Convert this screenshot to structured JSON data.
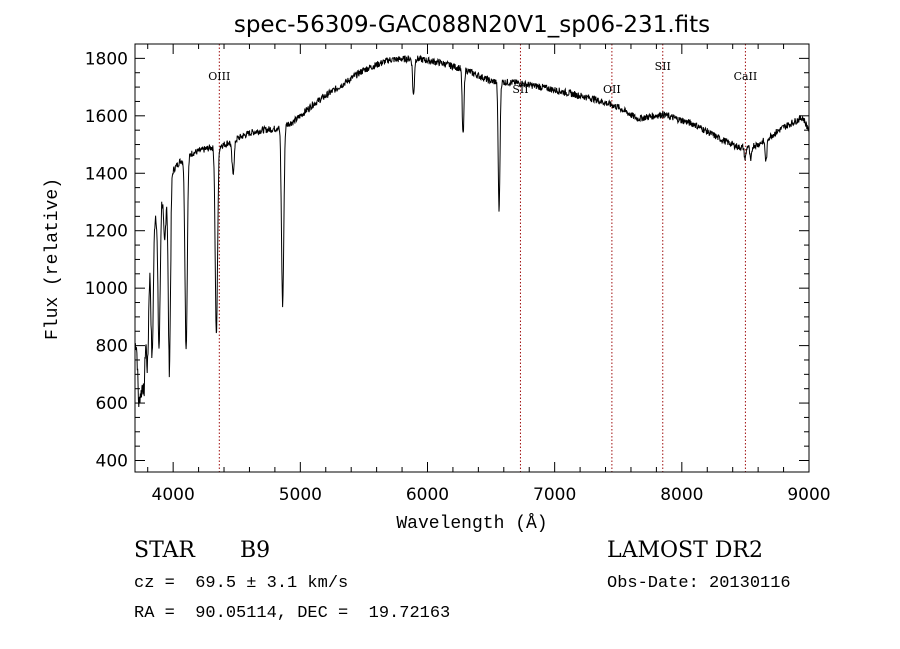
{
  "chart_data": {
    "type": "line",
    "title": "spec-56309-GAC088N20V1_sp06-231.fits",
    "xlabel": "Wavelength (Å)",
    "ylabel": "Flux (relative)",
    "xlim": [
      3700,
      9000
    ],
    "ylim": [
      360,
      1850
    ],
    "xticks": [
      4000,
      5000,
      6000,
      7000,
      8000,
      9000
    ],
    "yticks": [
      400,
      600,
      800,
      1000,
      1200,
      1400,
      1600,
      1800
    ],
    "grid": false,
    "series": [
      {
        "continuum": [
          [
            3700,
            800
          ],
          [
            3780,
            1000
          ],
          [
            3850,
            1250
          ],
          [
            3950,
            1380
          ],
          [
            4050,
            1440
          ],
          [
            4150,
            1470
          ],
          [
            4300,
            1490
          ],
          [
            4400,
            1500
          ],
          [
            4500,
            1520
          ],
          [
            4600,
            1540
          ],
          [
            4700,
            1550
          ],
          [
            4800,
            1555
          ],
          [
            4950,
            1580
          ],
          [
            5100,
            1640
          ],
          [
            5300,
            1700
          ],
          [
            5500,
            1760
          ],
          [
            5700,
            1795
          ],
          [
            5900,
            1800
          ],
          [
            6100,
            1785
          ],
          [
            6300,
            1760
          ],
          [
            6500,
            1720
          ],
          [
            6700,
            1715
          ],
          [
            6900,
            1700
          ],
          [
            7100,
            1680
          ],
          [
            7300,
            1660
          ],
          [
            7500,
            1630
          ],
          [
            7650,
            1590
          ],
          [
            7850,
            1605
          ],
          [
            8100,
            1570
          ],
          [
            8300,
            1520
          ],
          [
            8450,
            1490
          ],
          [
            8600,
            1500
          ],
          [
            8800,
            1560
          ],
          [
            8950,
            1595
          ],
          [
            9000,
            1550
          ]
        ],
        "absorption_lines": [
          [
            3730,
            620
          ],
          [
            3750,
            680
          ],
          [
            3771,
            660
          ],
          [
            3798,
            730
          ],
          [
            3835,
            760
          ],
          [
            3889,
            790
          ],
          [
            3933,
            1150
          ],
          [
            3970,
            720
          ],
          [
            4102,
            790
          ],
          [
            4340,
            830
          ],
          [
            4471,
            1400
          ],
          [
            4861,
            940
          ],
          [
            5890,
            1670
          ],
          [
            6280,
            1530
          ],
          [
            6563,
            1265
          ],
          [
            8498,
            1450
          ],
          [
            8542,
            1440
          ],
          [
            8662,
            1440
          ]
        ],
        "noise_amplitude": 12
      }
    ],
    "line_markers": [
      {
        "label": "OIII",
        "wavelength": 4363,
        "label_y": 1725
      },
      {
        "label": "SII",
        "wavelength": 6731,
        "label_y": 1680
      },
      {
        "label": "OII",
        "wavelength": 7450,
        "label_y": 1680
      },
      {
        "label": "SII",
        "wavelength": 7850,
        "label_y": 1760
      },
      {
        "label": "CaII",
        "wavelength": 8500,
        "label_y": 1725
      }
    ],
    "colors": {
      "spectrum": "#000000",
      "marker": "#a01010",
      "axes": "#000000"
    }
  },
  "info": {
    "object_class": "STAR",
    "subclass": "B9",
    "survey": "LAMOST DR2",
    "redshift": "cz =  69.5 ± 3.1 km/s",
    "obs_date": "Obs-Date: 20130116",
    "coords": "RA =  90.05114, DEC =  19.72163"
  }
}
